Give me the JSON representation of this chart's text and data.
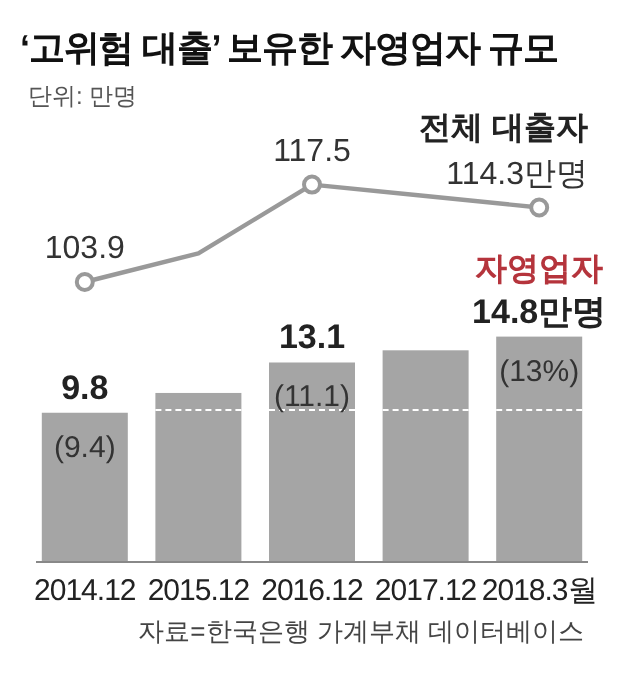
{
  "chart_data": [
    {
      "type": "line",
      "title": "‘고위험 대출’ 보유한 자영업자 규모",
      "subtitle": "단위: 만명",
      "categories": [
        null,
        null,
        null,
        null,
        null
      ],
      "tick_labels": false,
      "marker": "circle",
      "series": [
        {
          "name": "전체 대출자",
          "color": "#999999",
          "values": [
            103.9,
            107.9,
            117.5,
            115.9,
            114.3
          ],
          "value_labels": [
            "103.9",
            null,
            "117.5",
            null,
            "114.3만명"
          ]
        }
      ]
    },
    {
      "type": "bar",
      "categories": [
        "2014.12",
        "2015.12",
        "2016.12",
        "2017.12",
        "2018.3월"
      ],
      "ylim": [
        0,
        14.8
      ],
      "tick_labels": "x",
      "series": [
        {
          "name": "자영업자",
          "color": "#a5a5a5",
          "values": [
            9.8,
            11.1,
            13.1,
            13.9,
            14.8
          ],
          "value_labels": [
            "9.8",
            null,
            "13.1",
            null,
            "14.8만명"
          ]
        }
      ],
      "annotations": [
        {
          "text": "(9.4)",
          "x": "2014.12",
          "y": 9.8
        },
        {
          "text": "(11.1)",
          "x": "2016.12",
          "y": 13.1
        },
        {
          "text": "(13%)",
          "x": "2018.3월",
          "y": 14.8
        },
        "자료=한국은행 가계부채 데이터베이스"
      ]
    }
  ]
}
